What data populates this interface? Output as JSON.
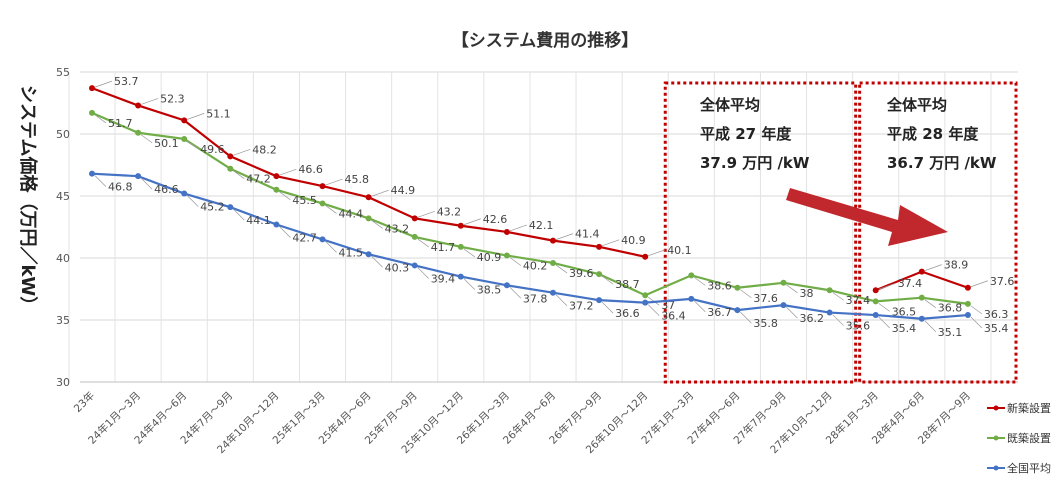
{
  "chart_data": {
    "type": "line",
    "title": "【システム費用の推移】",
    "ylabel": "システム価格（万円／kW）",
    "xlabel": "",
    "ylim": [
      30,
      55
    ],
    "yticks": [
      30,
      35,
      40,
      45,
      50,
      55
    ],
    "grid": true,
    "legend_position": "right",
    "categories": [
      "23年",
      "24年1月～3月",
      "24年4月～6月",
      "24年7月～9月",
      "24年10月～12月",
      "25年1月～3月",
      "25年4月～6月",
      "25年7月～9月",
      "25年10月～12月",
      "26年1月～3月",
      "26年4月～6月",
      "26年7月～9月",
      "26年10月～12月",
      "27年1月～3月",
      "27年4月～6月",
      "27年7月～9月",
      "27年10月～12月",
      "28年1月～3月",
      "28年4月～6月",
      "28年7月～9月"
    ],
    "series": [
      {
        "name": "新築設置",
        "color": "#c00000",
        "values": [
          53.7,
          52.3,
          51.1,
          48.2,
          46.6,
          45.8,
          44.9,
          43.2,
          42.6,
          42.1,
          41.4,
          40.9,
          40.1,
          null,
          null,
          null,
          null,
          37.4,
          38.9,
          37.6
        ],
        "labels": [
          "53.7",
          "52.3",
          "51.1",
          "48.2",
          "46.6",
          "45.8",
          "44.9",
          "43.2",
          "42.6",
          "42.1",
          "41.4",
          "40.9",
          "40.1",
          null,
          null,
          null,
          null,
          "37.4",
          "38.9",
          "37.6"
        ]
      },
      {
        "name": "既築設置",
        "color": "#70ad47",
        "values": [
          51.7,
          50.1,
          49.6,
          47.2,
          45.5,
          44.4,
          43.2,
          41.7,
          40.9,
          40.2,
          39.6,
          38.7,
          37,
          38.6,
          37.6,
          38,
          37.4,
          36.5,
          36.8,
          36.3
        ],
        "labels": [
          "51.7",
          "50.1",
          "49.6",
          "47.2",
          "45.5",
          "44.4",
          "43.2",
          "41.7",
          "40.9",
          "40.2",
          "39.6",
          "38.7",
          "37",
          "38.6",
          "37.6",
          "38",
          "37.4",
          "36.5",
          "36.8",
          "36.3"
        ]
      },
      {
        "name": "全国平均",
        "color": "#4472c4",
        "values": [
          46.8,
          46.6,
          45.2,
          44.1,
          42.7,
          41.5,
          40.3,
          39.4,
          38.5,
          37.8,
          37.2,
          36.6,
          36.4,
          36.7,
          35.8,
          36.2,
          35.6,
          35.4,
          35.1,
          35.4
        ],
        "labels": [
          "46.8",
          "46.6",
          "45.2",
          "44.1",
          "42.7",
          "41.5",
          "40.3",
          "39.4",
          "38.5",
          "37.8",
          "37.2",
          "36.6",
          "36.4",
          "36.7",
          "35.8",
          "36.2",
          "35.6",
          "35.4",
          "35.1",
          "35.4"
        ]
      }
    ],
    "annotations": [
      {
        "lines": [
          "全体平均",
          "平成 27 年度",
          "37.9 万円 /kW"
        ],
        "from_index": 13,
        "to_index": 16
      },
      {
        "lines": [
          "全体平均",
          "平成 28 年度",
          "36.7 万円 /kW"
        ],
        "from_index": 17,
        "to_index": 19
      }
    ],
    "box_color": "#c00000",
    "arrow_color": "#c0282d"
  }
}
